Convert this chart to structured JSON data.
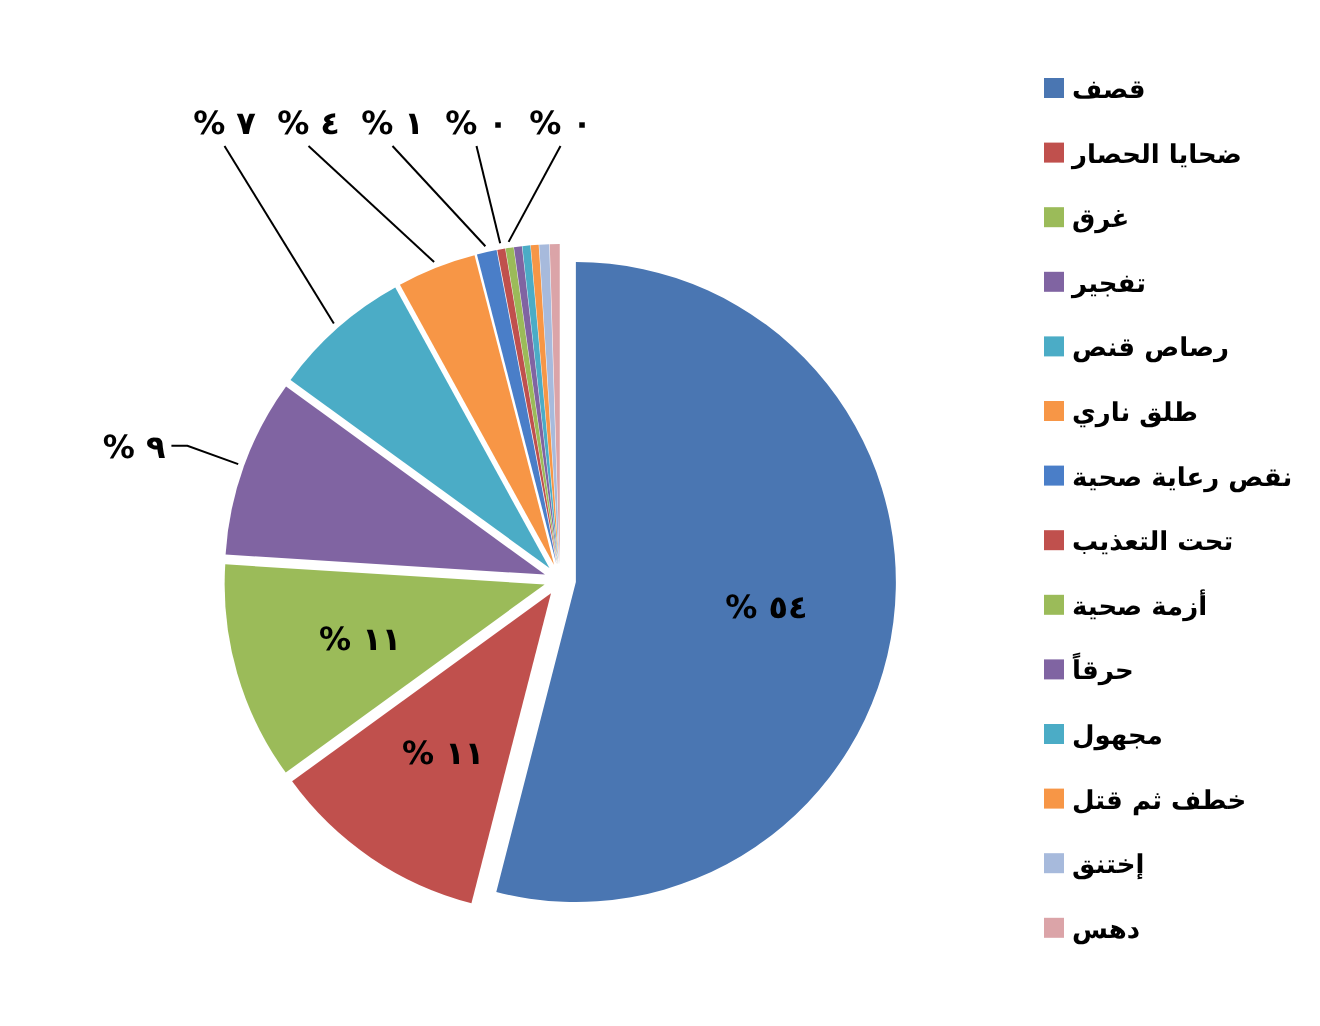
{
  "chart_data": {
    "type": "pie",
    "categories": [
      "قصف",
      "ضحايا الحصار",
      "غرق",
      "تفجير",
      "رصاص قنص",
      "طلق ناري",
      "نقص رعاية صحية",
      "تحت التعذيب",
      "أزمة صحية",
      "حرقاً",
      "مجهول",
      "خطف ثم قتل",
      "إختنق",
      "دهس"
    ],
    "values": [
      54,
      11,
      11,
      9,
      7,
      4,
      1,
      0.4,
      0.4,
      0.4,
      0.4,
      0.4,
      0.5,
      0.5
    ],
    "colors": [
      "#4a76b2",
      "#c0504d",
      "#9bbb59",
      "#8064a2",
      "#4bacc6",
      "#f79646",
      "#4a7ec8",
      "#c0504d",
      "#9bbb59",
      "#8064a2",
      "#4bacc6",
      "#f79646",
      "#a7badc",
      "#dba4a8"
    ],
    "value_labels": [
      "% ٥٤",
      "% ١١",
      "% ١١",
      "% ٩",
      "% ٧",
      "% ٤",
      "% ١",
      "% ٠",
      "% ٠",
      null,
      null,
      null,
      null,
      null
    ],
    "legend": "right"
  }
}
